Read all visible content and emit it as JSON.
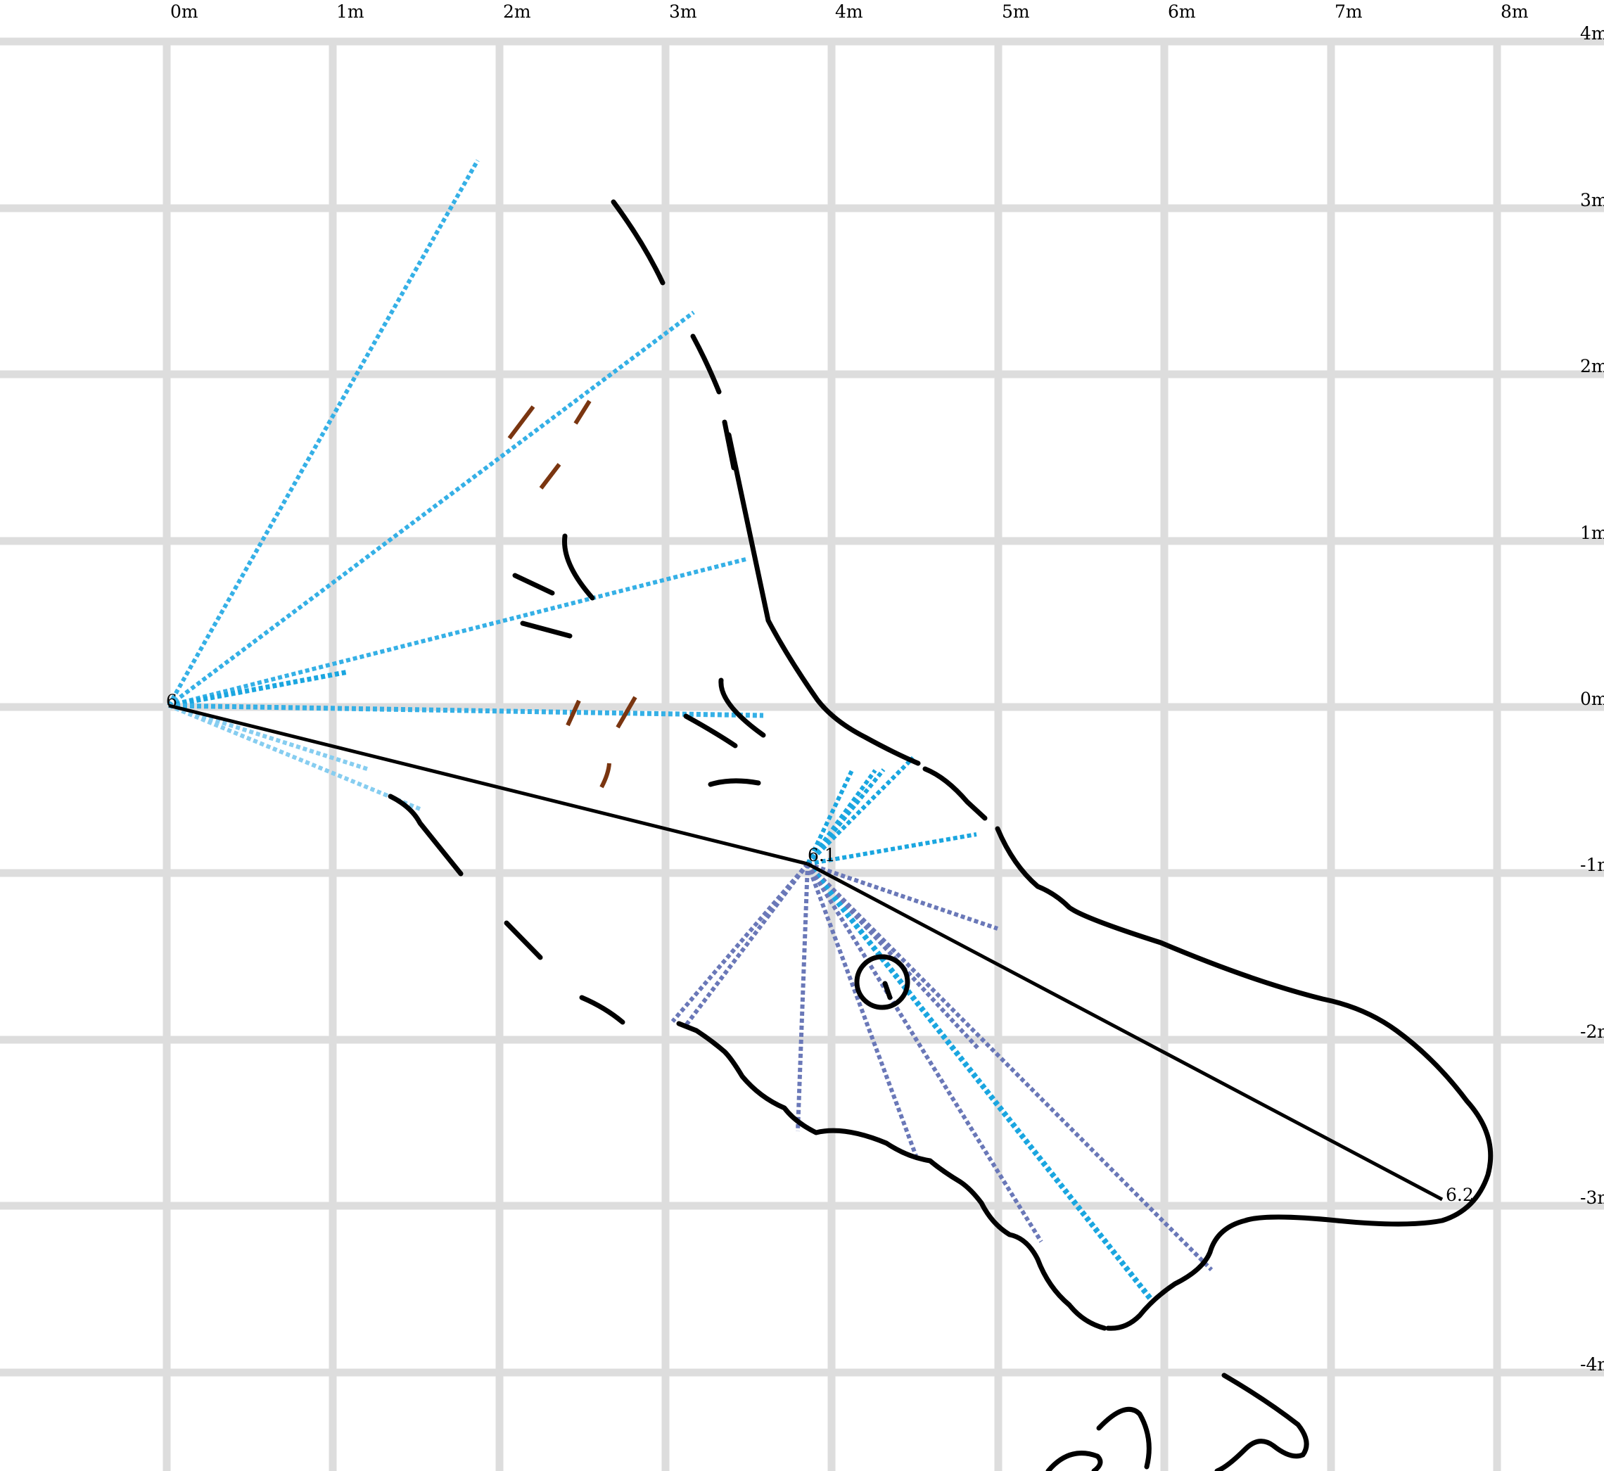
{
  "grid": {
    "x_labels": [
      "0m",
      "1m",
      "2m",
      "3m",
      "4m",
      "5m",
      "6m",
      "7m",
      "8m"
    ],
    "y_labels": [
      "4m",
      "3m",
      "2m",
      "1m",
      "0m",
      "-1m",
      "-2m",
      "-3m",
      "-4m"
    ]
  },
  "stations": [
    {
      "label": "6",
      "x": 0.0,
      "y": 0.0
    },
    {
      "label": "6.1",
      "x": 3.85,
      "y": -0.95
    },
    {
      "label": "6.2",
      "x": 7.75,
      "y": -2.9
    }
  ],
  "colors": {
    "grid": "#dddddd",
    "wall": "#000000",
    "shot": "#000000",
    "ray_station_6": "#35b0e6",
    "ray_station_6_light": "#86cdf0",
    "ray_station_61_up": "#1aa6e0",
    "ray_station_61_down": "#6a78b8",
    "detail": "#7a3510"
  }
}
